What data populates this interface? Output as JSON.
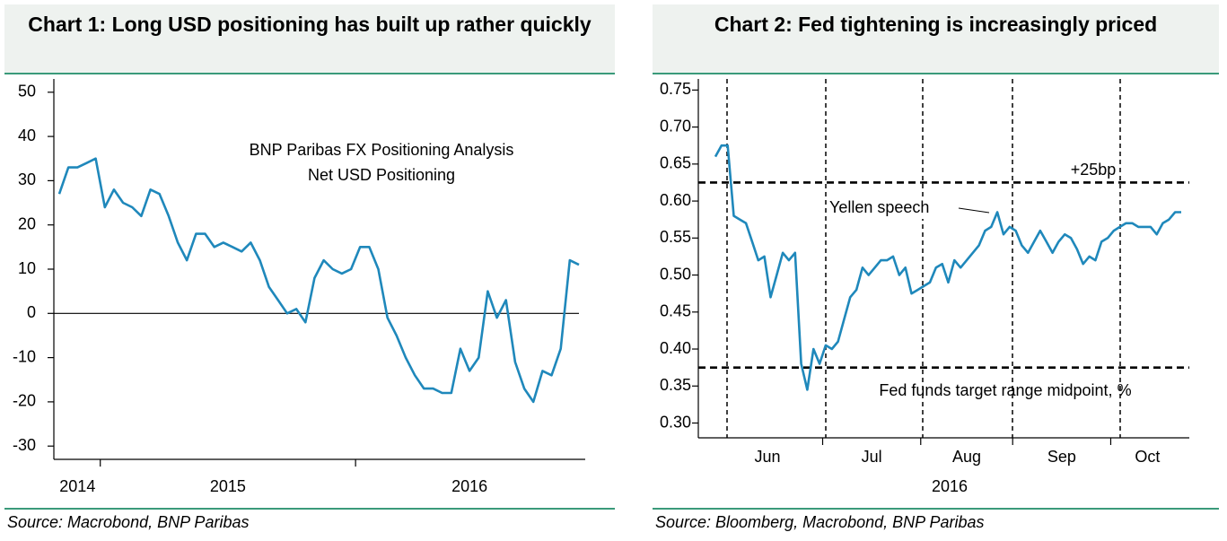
{
  "chart_data": [
    {
      "type": "line",
      "title": "Chart 1: Long USD positioning has built up rather quickly",
      "source": "Source: Macrobond, BNP Paribas",
      "annotations": [
        "BNP Paribas FX Positioning Analysis",
        "Net USD Positioning"
      ],
      "x": [
        "2014",
        "2014",
        "2014",
        "2014",
        "2014",
        "2015",
        "2015",
        "2015",
        "2015",
        "2015",
        "2015",
        "2015",
        "2015",
        "2015",
        "2015",
        "2015",
        "2015",
        "2015",
        "2015",
        "2015",
        "2015",
        "2015",
        "2015",
        "2015",
        "2015",
        "2015",
        "2015",
        "2015",
        "2015",
        "2015",
        "2015",
        "2015",
        "2015",
        "2016",
        "2016",
        "2016",
        "2016",
        "2016",
        "2016",
        "2016",
        "2016",
        "2016",
        "2016",
        "2016",
        "2016",
        "2016",
        "2016",
        "2016",
        "2016",
        "2016",
        "2016",
        "2016",
        "2016",
        "2016",
        "2016",
        "2016",
        "2016",
        "2016"
      ],
      "values": [
        27,
        33,
        33,
        34,
        35,
        24,
        28,
        25,
        24,
        22,
        28,
        27,
        22,
        16,
        12,
        18,
        18,
        15,
        16,
        15,
        14,
        16,
        12,
        6,
        3,
        0,
        1,
        -2,
        8,
        12,
        10,
        9,
        10,
        15,
        15,
        10,
        -1,
        -5,
        -10,
        -14,
        -17,
        -17,
        -18,
        -18,
        -8,
        -13,
        -10,
        5,
        -1,
        3,
        -11,
        -17,
        -20,
        -13,
        -14,
        -8,
        12,
        11
      ],
      "color": "#1f88bb",
      "ylim": [
        -33,
        53
      ],
      "yticks": [
        -30,
        -20,
        -10,
        0,
        10,
        20,
        30,
        40,
        50
      ],
      "zero_line": true
    },
    {
      "type": "line",
      "title": "Chart 2: Fed tightening is increasingly priced",
      "source": "Source: Bloomberg, Macrobond, BNP Paribas",
      "annotations": [
        "Yellen speech"
      ],
      "xlabel": "2016",
      "x": [
        "Jun",
        "Jun",
        "Jun",
        "Jun",
        "Jun",
        "Jun",
        "Jun",
        "Jun",
        "Jun",
        "Jun",
        "Jun",
        "Jun",
        "Jun",
        "Jun",
        "Jun",
        "Jun",
        "Jun",
        "Jun",
        "Jul",
        "Jul",
        "Jul",
        "Jul",
        "Jul",
        "Jul",
        "Jul",
        "Jul",
        "Jul",
        "Jul",
        "Jul",
        "Jul",
        "Jul",
        "Jul",
        "Jul",
        "Jul",
        "Aug",
        "Aug",
        "Aug",
        "Aug",
        "Aug",
        "Aug",
        "Aug",
        "Aug",
        "Aug",
        "Aug",
        "Aug",
        "Aug",
        "Aug",
        "Aug",
        "Aug",
        "Sep",
        "Sep",
        "Sep",
        "Sep",
        "Sep",
        "Sep",
        "Sep",
        "Sep",
        "Sep",
        "Sep",
        "Sep",
        "Sep",
        "Sep",
        "Sep",
        "Sep",
        "Sep",
        "Oct",
        "Oct",
        "Oct",
        "Oct",
        "Oct",
        "Oct",
        "Oct",
        "Oct",
        "Oct",
        "Oct",
        "Oct",
        "Oct"
      ],
      "values": [
        0.66,
        0.675,
        0.675,
        0.58,
        0.575,
        0.57,
        0.545,
        0.52,
        0.525,
        0.47,
        0.5,
        0.53,
        0.52,
        0.53,
        0.38,
        0.345,
        0.4,
        0.38,
        0.405,
        0.4,
        0.41,
        0.44,
        0.47,
        0.48,
        0.51,
        0.5,
        0.51,
        0.52,
        0.52,
        0.525,
        0.5,
        0.51,
        0.475,
        0.48,
        0.485,
        0.49,
        0.51,
        0.515,
        0.49,
        0.52,
        0.51,
        0.52,
        0.53,
        0.54,
        0.56,
        0.565,
        0.585,
        0.555,
        0.565,
        0.56,
        0.54,
        0.53,
        0.545,
        0.56,
        0.545,
        0.53,
        0.545,
        0.555,
        0.55,
        0.535,
        0.515,
        0.525,
        0.52,
        0.545,
        0.55,
        0.56,
        0.565,
        0.57,
        0.57,
        0.565,
        0.565,
        0.565,
        0.555,
        0.57,
        0.575,
        0.585,
        0.585
      ],
      "color": "#1f88bb",
      "ylim": [
        0.28,
        0.765
      ],
      "yticks": [
        {
          "value": 0.3,
          "label": "0.30"
        },
        0.35,
        {
          "value": 0.4,
          "label": "0.40"
        },
        0.45,
        {
          "value": 0.5,
          "label": "0.50"
        },
        0.55,
        {
          "value": 0.6,
          "label": "0.60"
        },
        0.65,
        {
          "value": 0.7,
          "label": "0.70"
        },
        0.75
      ],
      "reference_lines": [
        {
          "value": 0.625,
          "label": "+25bp"
        },
        {
          "value": 0.375,
          "label": "Fed funds target range midpoint, %"
        }
      ]
    }
  ]
}
